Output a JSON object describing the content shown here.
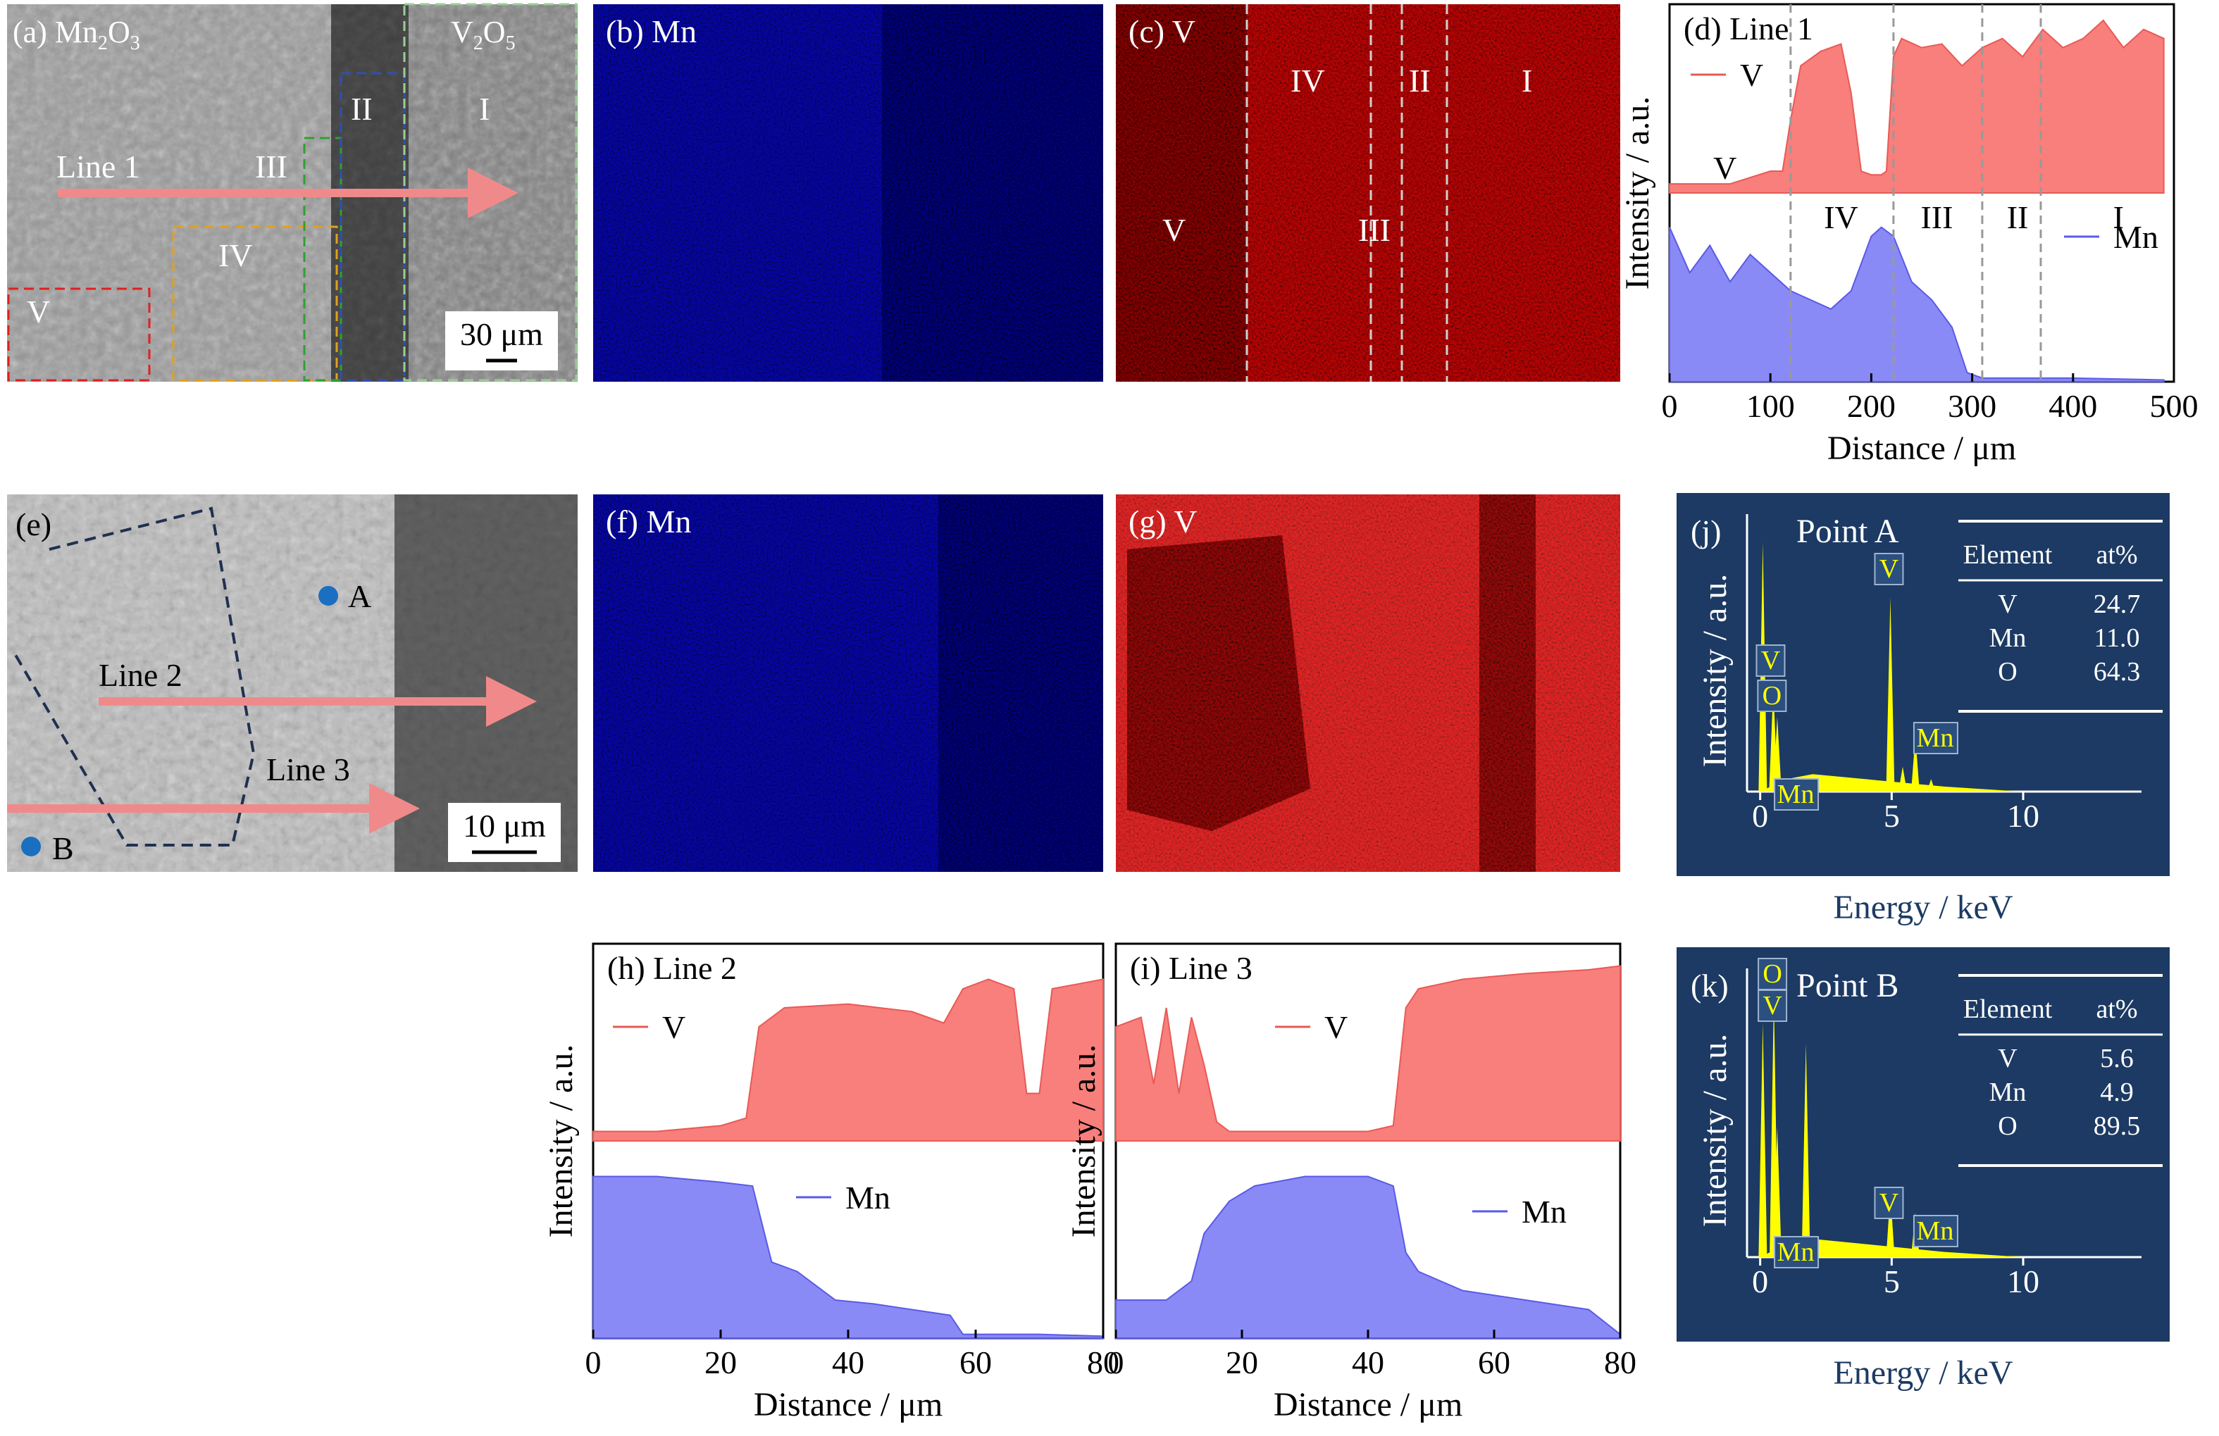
{
  "sem_a": {
    "label": "(a) Mn",
    "sub_a": "2",
    "label_o": "O",
    "sub_b": "3",
    "v2o5_v": "V",
    "v2o5_sub_a": "2",
    "v2o5_o": "O",
    "v2o5_sub_b": "5",
    "zone_I": "I",
    "zone_II": "II",
    "zone_III": "III",
    "zone_IV": "IV",
    "zone_V": "V",
    "line": "Line 1",
    "scale": "30 μm"
  },
  "map_b": {
    "label": "(b) Mn"
  },
  "map_c": {
    "label": "(c) V",
    "zone_I": "I",
    "zone_II": "II",
    "zone_III": "III",
    "zone_IV": "IV",
    "zone_V": "V"
  },
  "sem_e": {
    "label": "(e)",
    "line2": "Line 2",
    "line3": "Line 3",
    "point_a": "A",
    "point_b": "B",
    "scale": "10 μm"
  },
  "map_f": {
    "label": "(f) Mn"
  },
  "map_g": {
    "label": "(g) V"
  },
  "chart_data": [
    {
      "panel": "d",
      "type": "area",
      "title": "(d) Line 1",
      "xlabel": "Distance / μm",
      "ylabel": "Intensity / a.u.",
      "xlim": [
        0,
        500
      ],
      "xticks": [
        0,
        100,
        200,
        300,
        400,
        500
      ],
      "boundaries": [
        120,
        222,
        310,
        368
      ],
      "legend": [
        {
          "name": "V",
          "color": "#ef6f6c"
        },
        {
          "name": "Mn",
          "color": "#6d6cf0"
        }
      ],
      "zone_labels_V": [
        {
          "text": "V",
          "x": 55
        }
      ],
      "zone_labels_Mn": [
        {
          "text": "IV",
          "x": 170
        },
        {
          "text": "III",
          "x": 265
        },
        {
          "text": "II",
          "x": 345
        },
        {
          "text": "I",
          "x": 445
        }
      ],
      "series": [
        {
          "name": "V",
          "x": [
            0,
            60,
            100,
            112,
            120,
            130,
            150,
            170,
            180,
            190,
            200,
            210,
            215,
            222,
            230,
            250,
            270,
            290,
            310,
            330,
            350,
            370,
            390,
            410,
            430,
            450,
            470,
            490
          ],
          "y": [
            0.05,
            0.05,
            0.12,
            0.12,
            0.4,
            0.7,
            0.78,
            0.82,
            0.55,
            0.12,
            0.1,
            0.1,
            0.12,
            0.75,
            0.85,
            0.8,
            0.82,
            0.7,
            0.8,
            0.85,
            0.75,
            0.9,
            0.8,
            0.85,
            0.95,
            0.8,
            0.9,
            0.85
          ]
        },
        {
          "name": "Mn",
          "x": [
            0,
            20,
            40,
            60,
            80,
            100,
            120,
            140,
            160,
            180,
            200,
            210,
            222,
            240,
            260,
            280,
            295,
            310,
            330,
            400,
            490
          ],
          "y": [
            0.85,
            0.6,
            0.75,
            0.55,
            0.7,
            0.6,
            0.5,
            0.45,
            0.4,
            0.5,
            0.8,
            0.85,
            0.8,
            0.55,
            0.45,
            0.3,
            0.05,
            0.02,
            0.02,
            0.02,
            0.01
          ]
        }
      ]
    },
    {
      "panel": "h",
      "type": "area",
      "title": "(h) Line 2",
      "xlabel": "Distance / μm",
      "ylabel": "Intensity / a.u.",
      "xlim": [
        0,
        80
      ],
      "xticks": [
        0,
        20,
        40,
        60,
        80
      ],
      "legend": [
        {
          "name": "V",
          "color": "#ef6f6c"
        },
        {
          "name": "Mn",
          "color": "#6d6cf0"
        }
      ],
      "series": [
        {
          "name": "V",
          "x": [
            0,
            10,
            20,
            24,
            26,
            30,
            40,
            50,
            55,
            58,
            62,
            66,
            68,
            70,
            72,
            80
          ],
          "y": [
            0.05,
            0.05,
            0.08,
            0.12,
            0.6,
            0.7,
            0.72,
            0.68,
            0.62,
            0.8,
            0.85,
            0.8,
            0.25,
            0.25,
            0.8,
            0.85
          ]
        },
        {
          "name": "Mn",
          "x": [
            0,
            10,
            20,
            25,
            28,
            32,
            38,
            44,
            50,
            56,
            58,
            62,
            70,
            80
          ],
          "y": [
            0.85,
            0.85,
            0.82,
            0.8,
            0.4,
            0.35,
            0.2,
            0.18,
            0.15,
            0.12,
            0.02,
            0.02,
            0.02,
            0.01
          ]
        }
      ]
    },
    {
      "panel": "i",
      "type": "area",
      "title": "(i) Line 3",
      "xlabel": "Distance / μm",
      "ylabel": "Intensity / a.u.",
      "xlim": [
        0,
        80
      ],
      "xticks": [
        0,
        20,
        40,
        60,
        80
      ],
      "legend": [
        {
          "name": "V",
          "color": "#ef6f6c"
        },
        {
          "name": "Mn",
          "color": "#6d6cf0"
        }
      ],
      "series": [
        {
          "name": "V",
          "x": [
            0,
            4,
            6,
            8,
            10,
            12,
            14,
            16,
            18,
            22,
            30,
            40,
            44,
            46,
            48,
            55,
            65,
            75,
            80
          ],
          "y": [
            0.6,
            0.65,
            0.3,
            0.7,
            0.25,
            0.65,
            0.4,
            0.1,
            0.05,
            0.05,
            0.05,
            0.05,
            0.08,
            0.7,
            0.8,
            0.85,
            0.88,
            0.9,
            0.92
          ]
        },
        {
          "name": "Mn",
          "x": [
            0,
            8,
            12,
            14,
            18,
            22,
            30,
            40,
            44,
            46,
            48,
            55,
            65,
            75,
            80
          ],
          "y": [
            0.2,
            0.2,
            0.3,
            0.55,
            0.72,
            0.8,
            0.85,
            0.85,
            0.8,
            0.45,
            0.35,
            0.25,
            0.2,
            0.15,
            0.02
          ]
        }
      ]
    },
    {
      "panel": "j",
      "type": "line",
      "title": "Point A",
      "label": "(j)",
      "xlabel": "Energy / keV",
      "ylabel": "Intensity / a.u.",
      "xlim": [
        -0.5,
        14.5
      ],
      "xticks": [
        0,
        5,
        10
      ],
      "peaks": [
        {
          "x": 0.1,
          "y": 1.0
        },
        {
          "x": 0.5,
          "y": 0.42
        },
        {
          "x": 0.65,
          "y": 0.3
        },
        {
          "x": 4.95,
          "y": 0.78
        },
        {
          "x": 5.42,
          "y": 0.1
        },
        {
          "x": 5.9,
          "y": 0.22
        },
        {
          "x": 6.5,
          "y": 0.05
        }
      ],
      "peak_labels": [
        {
          "text": "V",
          "x": 4.95
        },
        {
          "text": "V",
          "x": 0.45
        },
        {
          "text": "O",
          "x": 0.5
        },
        {
          "text": "Mn",
          "x": 5.9
        },
        {
          "text": "Mn",
          "x": 0.6
        }
      ],
      "table": {
        "headers": [
          "Element",
          "at%"
        ],
        "rows": [
          [
            "V",
            "24.7"
          ],
          [
            "Mn",
            "11.0"
          ],
          [
            "O",
            "64.3"
          ]
        ]
      }
    },
    {
      "panel": "k",
      "type": "line",
      "title": "Point B",
      "label": "(k)",
      "xlabel": "Energy / keV",
      "ylabel": "Intensity / a.u.",
      "xlim": [
        -0.5,
        14.5
      ],
      "xticks": [
        0,
        5,
        10
      ],
      "peaks": [
        {
          "x": 0.1,
          "y": 0.9
        },
        {
          "x": 0.52,
          "y": 1.0
        },
        {
          "x": 0.65,
          "y": 0.5
        },
        {
          "x": 1.74,
          "y": 0.82
        },
        {
          "x": 4.95,
          "y": 0.25
        },
        {
          "x": 5.9,
          "y": 0.17
        }
      ],
      "peak_labels": [
        {
          "text": "O",
          "x": 0.52
        },
        {
          "text": "V",
          "x": 0.52
        },
        {
          "text": "Mn",
          "x": 0.6
        },
        {
          "text": "V",
          "x": 4.95
        },
        {
          "text": "Mn",
          "x": 5.9
        }
      ],
      "table": {
        "headers": [
          "Element",
          "at%"
        ],
        "rows": [
          [
            "V",
            "5.6"
          ],
          [
            "Mn",
            "4.9"
          ],
          [
            "O",
            "89.5"
          ]
        ]
      }
    }
  ],
  "colors": {
    "v_fill": "#f87f7b",
    "v_line": "#e85a56",
    "mn_fill": "#8a8af7",
    "mn_line": "#5a5ae8",
    "eds_bg": "#1c3a63",
    "eds_peak": "#ffff00",
    "map_red": "#e01010",
    "map_blue": "#1a1acc"
  }
}
